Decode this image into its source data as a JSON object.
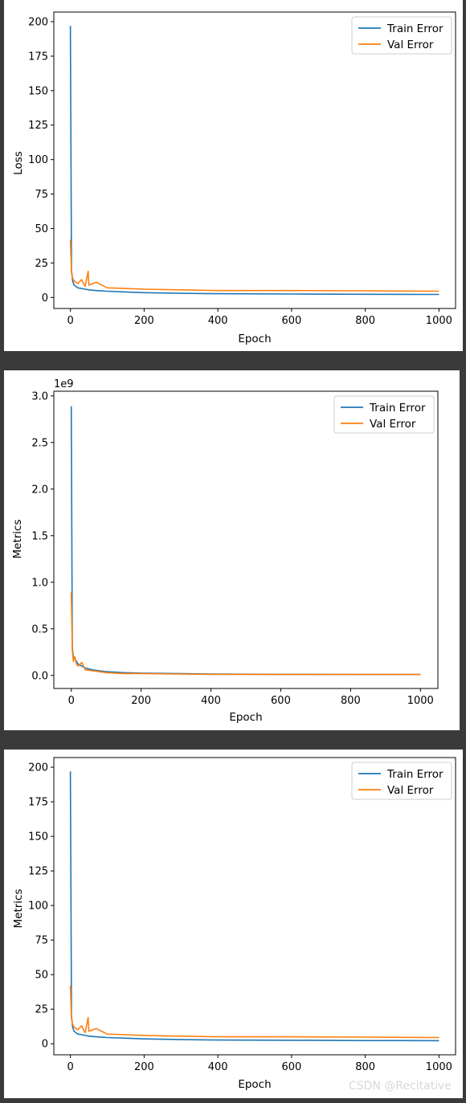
{
  "watermark": "CSDN @Recitative",
  "colors": {
    "train": "#1f77b4",
    "val": "#ff7f0e"
  },
  "chart_data": [
    {
      "type": "line",
      "xlabel": "Epoch",
      "ylabel": "Loss",
      "xlim": [
        -45,
        1045
      ],
      "ylim": [
        -8,
        207
      ],
      "xticks": [
        0,
        200,
        400,
        600,
        800,
        1000
      ],
      "yticks": [
        0,
        25,
        50,
        75,
        100,
        125,
        150,
        175,
        200
      ],
      "legend": "upper right",
      "series": [
        {
          "name": "Train Error",
          "color": "#1f77b4",
          "x": [
            0,
            3,
            6,
            10,
            15,
            20,
            30,
            40,
            50,
            70,
            100,
            150,
            200,
            300,
            400,
            600,
            800,
            1000
          ],
          "y": [
            197,
            20,
            12,
            9,
            8,
            7,
            6.5,
            6,
            5.5,
            5,
            4.5,
            4,
            3.5,
            3,
            2.7,
            2.5,
            2.3,
            2.2
          ]
        },
        {
          "name": "Val Error",
          "color": "#ff7f0e",
          "x": [
            0,
            3,
            6,
            10,
            15,
            20,
            30,
            40,
            48,
            50,
            70,
            100,
            150,
            200,
            300,
            400,
            600,
            800,
            1000
          ],
          "y": [
            42,
            18,
            14,
            12,
            11,
            10,
            13,
            8,
            19,
            9,
            11,
            7,
            6.5,
            6,
            5.5,
            5,
            5,
            4.8,
            4.5
          ]
        }
      ]
    },
    {
      "type": "line",
      "xlabel": "Epoch",
      "ylabel": "Metrics",
      "offset_text": "1e9",
      "xlim": [
        -50,
        1050
      ],
      "ylim": [
        -0.14,
        3.05
      ],
      "xticks": [
        0,
        200,
        400,
        600,
        800,
        1000
      ],
      "yticks": [
        0.0,
        0.5,
        1.0,
        1.5,
        2.0,
        2.5,
        3.0
      ],
      "ytick_labels": [
        "0.0",
        "0.5",
        "1.0",
        "1.5",
        "2.0",
        "2.5",
        "3.0"
      ],
      "legend": "upper right",
      "series": [
        {
          "name": "Train Error",
          "color": "#1f77b4",
          "x": [
            0,
            3,
            6,
            10,
            15,
            20,
            30,
            40,
            60,
            80,
            100,
            150,
            200,
            300,
            400,
            600,
            800,
            1000
          ],
          "y": [
            2.89,
            0.3,
            0.2,
            0.18,
            0.15,
            0.12,
            0.1,
            0.08,
            0.06,
            0.05,
            0.04,
            0.03,
            0.025,
            0.02,
            0.015,
            0.012,
            0.01,
            0.01
          ]
        },
        {
          "name": "Val Error",
          "color": "#ff7f0e",
          "x": [
            0,
            3,
            6,
            10,
            15,
            20,
            30,
            40,
            60,
            80,
            100,
            150,
            200,
            300,
            400,
            600,
            800,
            1000
          ],
          "y": [
            0.89,
            0.28,
            0.15,
            0.2,
            0.12,
            0.1,
            0.14,
            0.06,
            0.05,
            0.04,
            0.03,
            0.02,
            0.02,
            0.015,
            0.012,
            0.01,
            0.01,
            0.01
          ]
        }
      ]
    },
    {
      "type": "line",
      "xlabel": "Epoch",
      "ylabel": "Metrics",
      "xlim": [
        -45,
        1045
      ],
      "ylim": [
        -8,
        207
      ],
      "xticks": [
        0,
        200,
        400,
        600,
        800,
        1000
      ],
      "yticks": [
        0,
        25,
        50,
        75,
        100,
        125,
        150,
        175,
        200
      ],
      "legend": "upper right",
      "series": [
        {
          "name": "Train Error",
          "color": "#1f77b4",
          "x": [
            0,
            3,
            6,
            10,
            15,
            20,
            30,
            40,
            50,
            70,
            100,
            150,
            200,
            300,
            400,
            600,
            800,
            1000
          ],
          "y": [
            197,
            20,
            12,
            9,
            8,
            7,
            6.5,
            6,
            5.5,
            5,
            4.5,
            4,
            3.5,
            3,
            2.7,
            2.5,
            2.3,
            2.2
          ]
        },
        {
          "name": "Val Error",
          "color": "#ff7f0e",
          "x": [
            0,
            3,
            6,
            10,
            15,
            20,
            30,
            40,
            48,
            50,
            70,
            100,
            150,
            200,
            300,
            400,
            600,
            800,
            1000
          ],
          "y": [
            42,
            18,
            14,
            12,
            11,
            10,
            13,
            8,
            19,
            9,
            11,
            7,
            6.5,
            6,
            5.5,
            5,
            5,
            4.8,
            4.5
          ]
        }
      ]
    }
  ]
}
